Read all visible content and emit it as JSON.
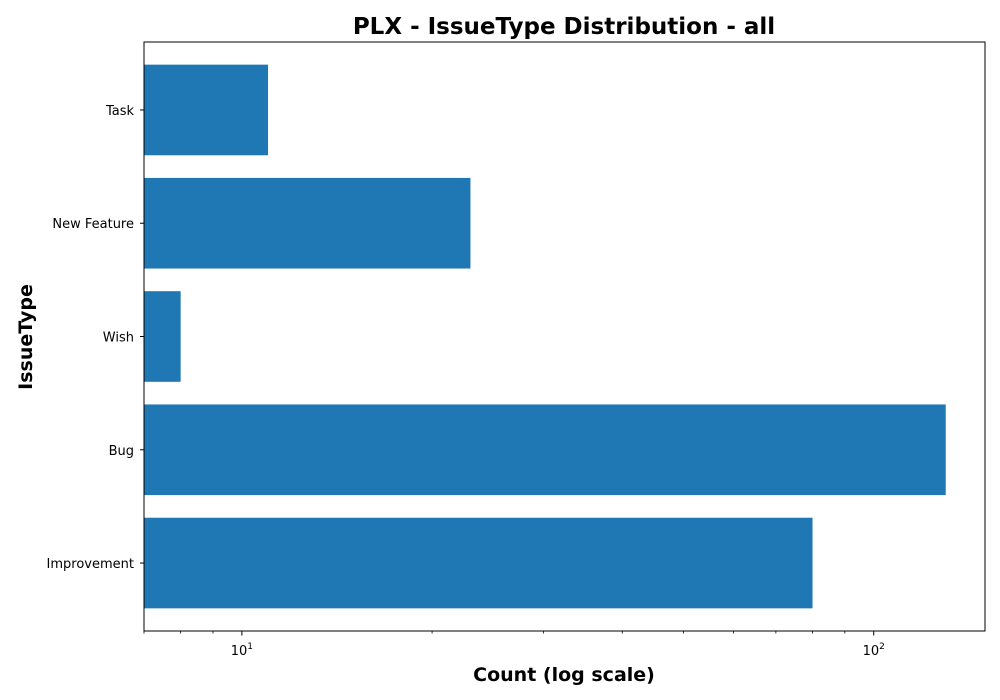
{
  "chart_data": {
    "type": "bar",
    "orientation": "horizontal",
    "title": "PLX - IssueType Distribution - all",
    "xlabel": "Count (log scale)",
    "ylabel": "IssueType",
    "categories": [
      "Improvement",
      "Bug",
      "Wish",
      "New Feature",
      "Task"
    ],
    "values": [
      80,
      130,
      8,
      23,
      11
    ],
    "xscale": "log",
    "xlim": [
      7,
      150
    ],
    "x_major_ticks": [
      {
        "value": 10,
        "base": "10",
        "exponent": "1"
      },
      {
        "value": 100,
        "base": "10",
        "exponent": "2"
      }
    ],
    "x_minor_ticks": [
      7,
      8,
      9,
      20,
      30,
      40,
      50,
      60,
      70,
      80,
      90
    ],
    "bar_color": "#1f77b4",
    "grid": false,
    "legend": "none"
  }
}
